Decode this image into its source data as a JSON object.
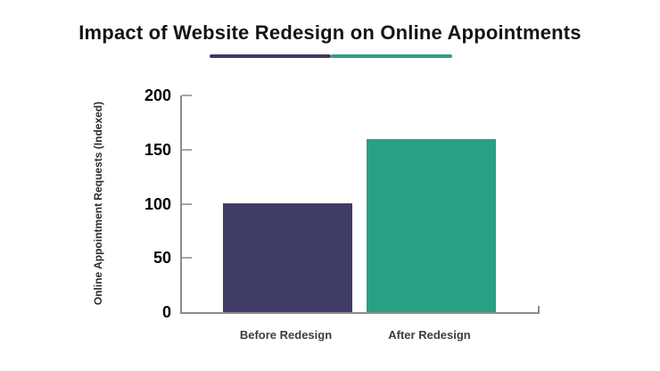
{
  "header": {
    "title": "Impact of Website Redesign on Online Appointments",
    "divider_colors": [
      "#3E3A65",
      "#2BA385"
    ]
  },
  "chart_data": {
    "type": "bar",
    "title": "Impact of Website Redesign on Online Appointments",
    "categories": [
      "Before Redesign",
      "After Redesign"
    ],
    "values": [
      100,
      160
    ],
    "bar_colors": [
      "#3F3C68",
      "#28A083"
    ],
    "xlabel": "",
    "ylabel": "Online Appointment Requests (Indexed)",
    "yticks": [
      0,
      50,
      100,
      150,
      200
    ],
    "ylim": [
      0,
      200
    ],
    "grid": false,
    "legend": "none",
    "axis_color": "#8c8c8c",
    "tick_color": "#a6a6a6",
    "tick_label_color": "#000000",
    "category_label_color": "#3d3d3d",
    "background": "#ffffff"
  }
}
